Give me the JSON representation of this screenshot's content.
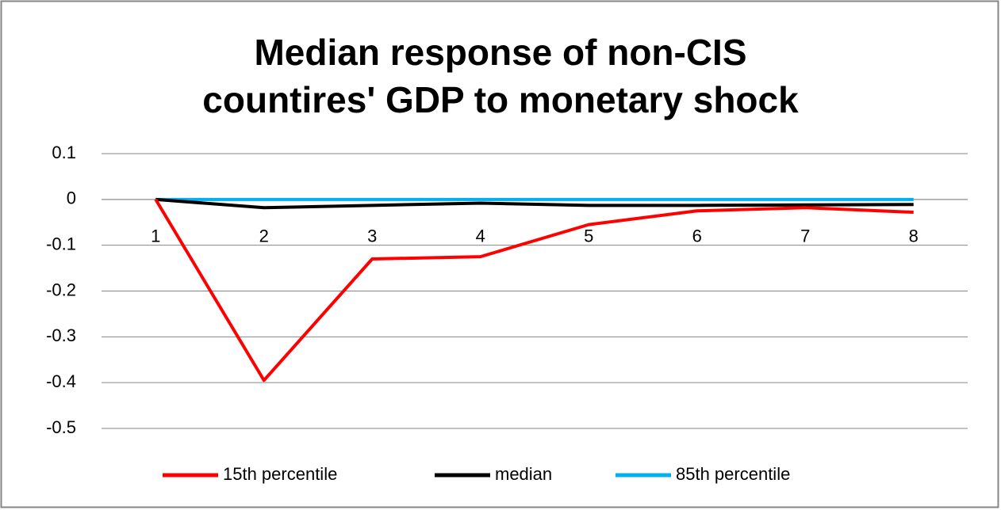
{
  "chart_data": {
    "type": "line",
    "title_lines": [
      "Median response of non-CIS",
      "countires' GDP to monetary shock"
    ],
    "categories": [
      "1",
      "2",
      "3",
      "4",
      "5",
      "6",
      "7",
      "8"
    ],
    "series": [
      {
        "name": "15th percentile",
        "color": "#ff0000",
        "values": [
          0,
          -0.395,
          -0.13,
          -0.125,
          -0.055,
          -0.025,
          -0.018,
          -0.028
        ]
      },
      {
        "name": "median",
        "color": "#000000",
        "values": [
          0,
          -0.018,
          -0.013,
          -0.008,
          -0.013,
          -0.013,
          -0.012,
          -0.011
        ]
      },
      {
        "name": "85th percentile",
        "color": "#00b0f0",
        "values": [
          0,
          0,
          0,
          0,
          0,
          0,
          0,
          0
        ]
      }
    ],
    "ylim": [
      -0.5,
      0.1
    ],
    "yticks": [
      0.1,
      0,
      -0.1,
      -0.2,
      -0.3,
      -0.4,
      -0.5
    ],
    "grid": true,
    "legend": "bottom"
  }
}
